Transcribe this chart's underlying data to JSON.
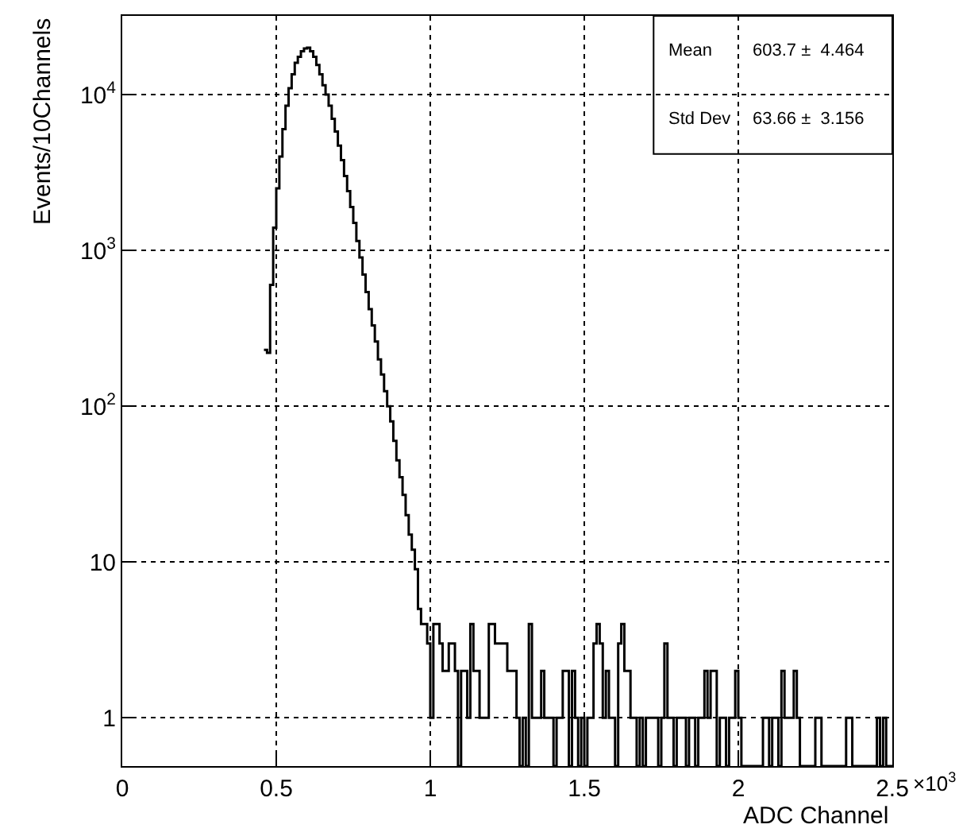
{
  "chart_data": {
    "type": "histogram",
    "xlabel": "ADC Channel",
    "ylabel": "Events/10Channels",
    "bins": [
      0.46,
      0.47,
      0.48,
      0.49,
      0.5,
      0.51,
      0.52,
      0.53,
      0.54,
      0.55,
      0.56,
      0.57,
      0.58,
      0.59,
      0.6,
      0.61,
      0.62,
      0.63,
      0.64,
      0.65,
      0.66,
      0.67,
      0.68,
      0.69,
      0.7,
      0.71,
      0.72,
      0.73,
      0.74,
      0.75,
      0.76,
      0.77,
      0.78,
      0.79,
      0.8,
      0.81,
      0.82,
      0.83,
      0.84,
      0.85,
      0.86,
      0.87,
      0.88,
      0.89,
      0.9,
      0.91,
      0.92,
      0.93,
      0.94,
      0.95,
      0.96,
      0.97,
      0.98,
      0.99,
      1.0,
      1.01,
      1.02,
      1.03,
      1.04,
      1.05,
      1.06,
      1.07,
      1.08,
      1.09,
      1.1,
      1.11,
      1.12,
      1.13,
      1.14,
      1.15,
      1.16,
      1.17,
      1.18,
      1.19,
      1.2,
      1.21,
      1.22,
      1.23,
      1.24,
      1.25,
      1.26,
      1.27,
      1.28,
      1.29,
      1.3,
      1.31,
      1.32,
      1.33,
      1.34,
      1.35,
      1.36,
      1.37,
      1.38,
      1.39,
      1.4,
      1.41,
      1.42,
      1.43,
      1.44,
      1.45,
      1.46,
      1.47,
      1.48,
      1.49,
      1.5,
      1.51,
      1.52,
      1.53,
      1.54,
      1.55,
      1.56,
      1.57,
      1.58,
      1.59,
      1.6,
      1.61,
      1.62,
      1.63,
      1.64,
      1.65,
      1.66,
      1.67,
      1.68,
      1.69,
      1.7,
      1.71,
      1.72,
      1.73,
      1.74,
      1.75,
      1.76,
      1.77,
      1.78,
      1.79,
      1.8,
      1.81,
      1.82,
      1.83,
      1.84,
      1.85,
      1.86,
      1.87,
      1.88,
      1.89,
      1.9,
      1.91,
      1.92,
      1.93,
      1.94,
      1.95,
      1.96,
      1.97,
      1.98,
      1.99,
      2.0,
      2.01,
      2.02,
      2.03,
      2.04,
      2.05,
      2.06,
      2.07,
      2.08,
      2.09,
      2.1,
      2.11,
      2.12,
      2.13,
      2.14,
      2.15,
      2.16,
      2.17,
      2.18,
      2.19,
      2.2,
      2.21,
      2.22,
      2.23,
      2.24,
      2.25,
      2.26,
      2.27,
      2.28,
      2.29,
      2.3,
      2.31,
      2.32,
      2.33,
      2.34,
      2.35,
      2.36,
      2.37,
      2.38,
      2.39,
      2.4,
      2.41,
      2.42,
      2.43,
      2.44,
      2.45,
      2.46,
      2.47,
      2.48,
      2.49,
      2.5
    ],
    "values": [
      230,
      220,
      600,
      1400,
      2500,
      4000,
      6000,
      8500,
      11000,
      13500,
      16000,
      17500,
      19000,
      19800,
      20000,
      19000,
      17500,
      15500,
      13500,
      11500,
      10000,
      8500,
      7000,
      5800,
      4700,
      3800,
      3000,
      2400,
      1900,
      1500,
      1150,
      900,
      700,
      540,
      420,
      330,
      260,
      200,
      160,
      125,
      100,
      80,
      60,
      45,
      35,
      27,
      20,
      15,
      12,
      9,
      5,
      4,
      4,
      3,
      1,
      4,
      4,
      3,
      2,
      2,
      3,
      3,
      2,
      null,
      2,
      2,
      1,
      4,
      2,
      2,
      1,
      1,
      1,
      4,
      4,
      3,
      3,
      3,
      3,
      2,
      2,
      2,
      1,
      null,
      1,
      null,
      4,
      1,
      1,
      1,
      2,
      1,
      1,
      1,
      null,
      1,
      1,
      2,
      2,
      null,
      2,
      1,
      null,
      1,
      null,
      1,
      1,
      3,
      4,
      3,
      1,
      2,
      1,
      1,
      null,
      3,
      4,
      2,
      2,
      1,
      1,
      null,
      1,
      null,
      1,
      1,
      1,
      1,
      null,
      1,
      3,
      1,
      1,
      null,
      1,
      1,
      1,
      null,
      1,
      1,
      null,
      1,
      1,
      2,
      1,
      2,
      2,
      null,
      1,
      1,
      null,
      1,
      1,
      2,
      1,
      null,
      null,
      null,
      null,
      null,
      null,
      null,
      1,
      1,
      null,
      1,
      1,
      null,
      2,
      1,
      1,
      1,
      2,
      1,
      null,
      null,
      null,
      null,
      null,
      1,
      1,
      null,
      null,
      null,
      null,
      null,
      null,
      null,
      null,
      1,
      1,
      null,
      null,
      null,
      null,
      null,
      null,
      null,
      null,
      1,
      null,
      1,
      null,
      null
    ],
    "color": "#000000",
    "xlim": [
      0,
      2.5
    ],
    "xticks": [
      0,
      0.5,
      1,
      1.5,
      2,
      2.5
    ],
    "log": "y",
    "ylim": [
      0.49,
      32000
    ],
    "yticks": [
      1,
      10,
      {
        "value": 100,
        "label": "10$^{2}$"
      },
      {
        "value": 1000,
        "label": "10$^{3}$"
      },
      {
        "value": 10000,
        "label": "10$^{4}$"
      }
    ],
    "grid": true,
    "line_style": "solid",
    "annotations": [
      "Mean",
      "603.7 ±  4.464",
      "Std Dev",
      "63.66 ±  3.156",
      "×10$^{3}$"
    ]
  }
}
